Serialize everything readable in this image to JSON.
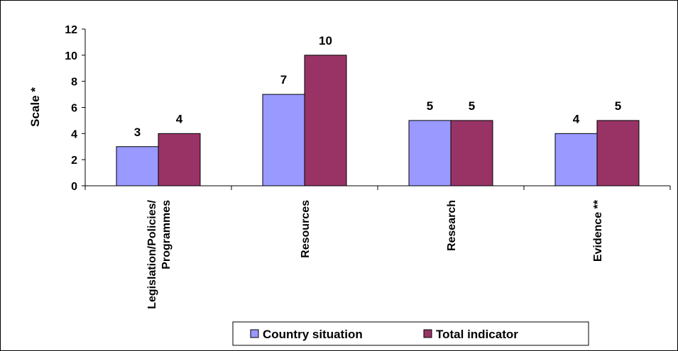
{
  "chart_data": {
    "type": "bar",
    "categories": [
      "Legislation/Policies/ Programmes",
      "Resources",
      "Research",
      "Evidence **"
    ],
    "series": [
      {
        "name": "Country situation",
        "color": "#9999ff",
        "values": [
          3,
          7,
          5,
          4
        ]
      },
      {
        "name": "Total indicator",
        "color": "#993366",
        "values": [
          4,
          10,
          5,
          5
        ]
      }
    ],
    "ylabel": "Scale *",
    "ylim": [
      0,
      12
    ],
    "yticks": [
      0,
      2,
      4,
      6,
      8,
      10,
      12
    ],
    "legend_position": "bottom"
  }
}
